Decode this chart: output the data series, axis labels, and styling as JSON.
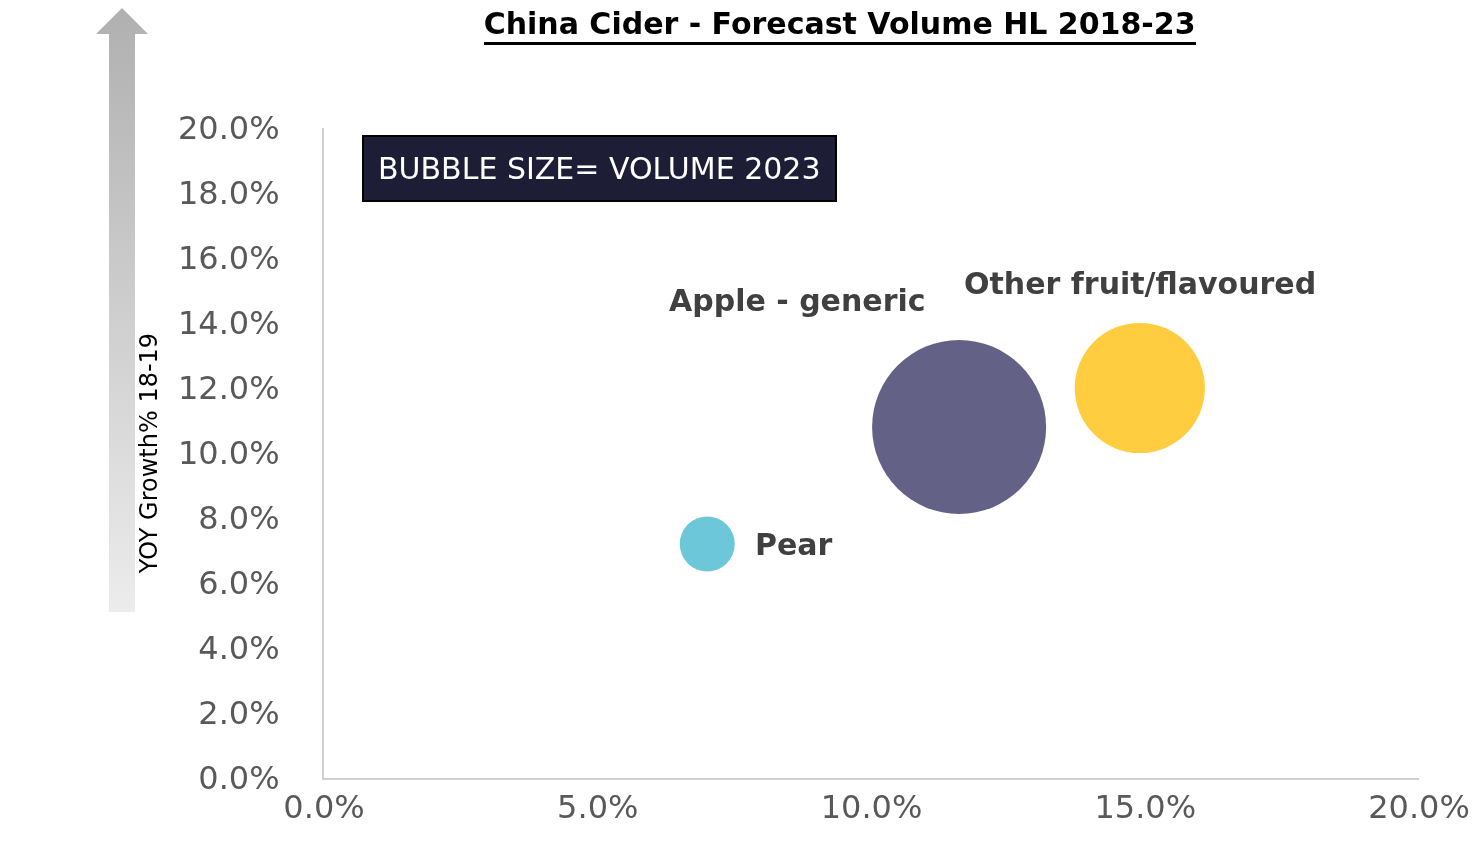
{
  "chart_data": {
    "type": "bubble",
    "title": "China Cider - Forecast Volume HL 2018-23",
    "ylabel": "YOY Growth% 18-19",
    "annotations": [
      "BUBBLE SIZE= VOLUME 2023"
    ],
    "series": [
      {
        "name": "Pear",
        "color": "#6cc8d8",
        "x": [
          7.0
        ],
        "values": [
          7.2
        ],
        "sizes": [
          0.1
        ]
      },
      {
        "name": "Apple - generic",
        "color": "#636185",
        "x": [
          11.6
        ],
        "values": [
          10.8
        ],
        "sizes": [
          1
        ]
      },
      {
        "name": "Other fruit/flavoured",
        "color": "#ffcd3f",
        "x": [
          14.9
        ],
        "values": [
          12.0
        ],
        "sizes": [
          0.56
        ]
      }
    ],
    "xlim": [
      0,
      20
    ],
    "xticks": [
      {
        "value": 0,
        "label": "0.0%"
      },
      {
        "value": 5,
        "label": "5.0%"
      },
      {
        "value": 10,
        "label": "10.0%"
      },
      {
        "value": 15,
        "label": "15.0%"
      },
      {
        "value": 20,
        "label": "20.0%"
      }
    ],
    "ylim": [
      0,
      20
    ],
    "yticks": [
      {
        "value": 0,
        "label": "0.0%"
      },
      {
        "value": 2,
        "label": "2.0%"
      },
      {
        "value": 4,
        "label": "4.0%"
      },
      {
        "value": 6,
        "label": "6.0%"
      },
      {
        "value": 8,
        "label": "8.0%"
      },
      {
        "value": 10,
        "label": "10.0%"
      },
      {
        "value": 12,
        "label": "12.0%"
      },
      {
        "value": 14,
        "label": "14.0%"
      },
      {
        "value": 16,
        "label": "16.0%"
      },
      {
        "value": 18,
        "label": "18.0%"
      },
      {
        "value": 20,
        "label": "20.0%"
      }
    ],
    "grid": false,
    "legend": false,
    "marker": "circle"
  }
}
